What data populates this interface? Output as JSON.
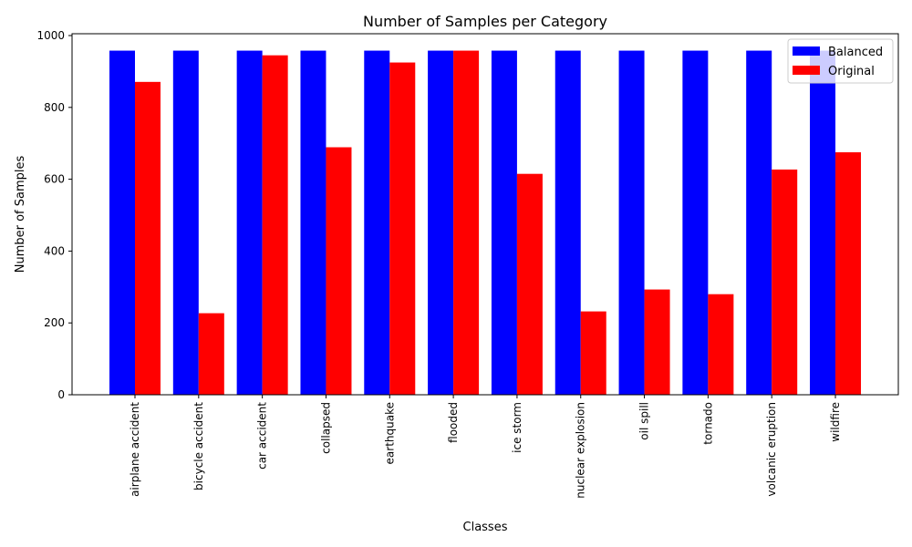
{
  "chart_data": {
    "type": "bar",
    "title": "Number of Samples per Category",
    "xlabel": "Classes",
    "ylabel": "Number of Samples",
    "ylim": [
      0,
      1000
    ],
    "yticks": [
      0,
      200,
      400,
      600,
      800,
      1000
    ],
    "grid": false,
    "legend_position": "top-right",
    "categories": [
      "airplane accident",
      "bicycle accident",
      "car accident",
      "collapsed",
      "earthquake",
      "flooded",
      "ice storm",
      "nuclear explosion",
      "oil spill",
      "tornado",
      "volcanic eruption",
      "wildfire"
    ],
    "series": [
      {
        "name": "Balanced",
        "color": "#0000ff",
        "values": [
          958,
          958,
          958,
          958,
          958,
          958,
          958,
          958,
          958,
          958,
          958,
          958
        ]
      },
      {
        "name": "Original",
        "color": "#ff0000",
        "values": [
          871,
          227,
          945,
          689,
          925,
          958,
          615,
          232,
          293,
          280,
          627,
          675
        ]
      }
    ]
  }
}
